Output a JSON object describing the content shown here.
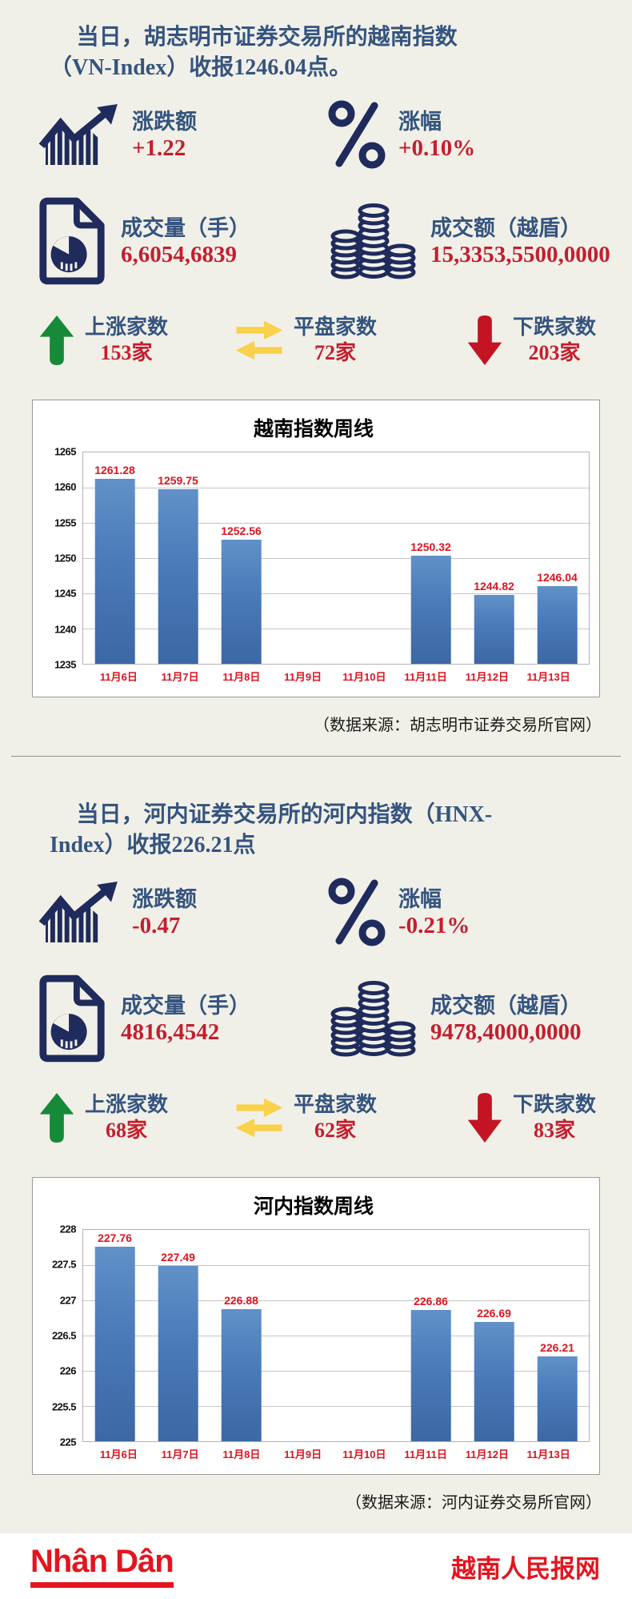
{
  "colors": {
    "bg": "#f1f0e8",
    "navy": "#1f2b5c",
    "blue-label": "#35547f",
    "red-value": "#c41e2e",
    "red-chart": "#dc1420",
    "green": "#168a38",
    "yellow": "#f9d14b",
    "dred": "#c21423",
    "brand-red": "#e4141e"
  },
  "sections": [
    {
      "title_lines": [
        "当日，胡志明市证券交易所的越南指数",
        "（VN-Index）收报1246.04点。"
      ],
      "stats": [
        {
          "icon": "trend-chart-icon",
          "label": "涨跌额",
          "value": "+1.22"
        },
        {
          "icon": "percent-icon",
          "label": "涨幅",
          "value": "+0.10%"
        },
        {
          "icon": "volume-doc-icon",
          "label": "成交量（手）",
          "value": "6,6054,6839"
        },
        {
          "icon": "coins-icon",
          "label": "成交额（越盾）",
          "value": "15,3353,5500,0000"
        }
      ],
      "breadth": [
        {
          "icon": "up-arrow-icon",
          "label": "上涨家数",
          "value": "153家"
        },
        {
          "icon": "flat-arrows-icon",
          "label": "平盘家数",
          "value": "72家"
        },
        {
          "icon": "down-arrow-icon",
          "label": "下跌家数",
          "value": "203家"
        }
      ],
      "source": "（数据来源：胡志明市证券交易所官网）"
    },
    {
      "title_lines": [
        "当日，河内证券交易所的河内指数（HNX-",
        "Index）收报226.21点"
      ],
      "stats": [
        {
          "icon": "trend-chart-icon",
          "label": "涨跌额",
          "value": "-0.47"
        },
        {
          "icon": "percent-icon",
          "label": "涨幅",
          "value": "-0.21%"
        },
        {
          "icon": "volume-doc-icon",
          "label": "成交量（手）",
          "value": "4816,4542"
        },
        {
          "icon": "coins-icon",
          "label": "成交额（越盾）",
          "value": "9478,4000,0000"
        }
      ],
      "breadth": [
        {
          "icon": "up-arrow-icon",
          "label": "上涨家数",
          "value": "68家"
        },
        {
          "icon": "flat-arrows-icon",
          "label": "平盘家数",
          "value": "62家"
        },
        {
          "icon": "down-arrow-icon",
          "label": "下跌家数",
          "value": "83家"
        }
      ],
      "source": "（数据来源：河内证券交易所官网）"
    }
  ],
  "chart_data": [
    {
      "type": "bar",
      "title": "越南指数周线",
      "categories": [
        "11月6日",
        "11月7日",
        "11月8日",
        "11月9日",
        "11月10日",
        "11月11日",
        "11月12日",
        "11月13日"
      ],
      "values": [
        1261.28,
        1259.75,
        1252.56,
        null,
        null,
        1250.32,
        1244.82,
        1246.04
      ],
      "ylim": [
        1235,
        1265
      ],
      "ytick_step": 5,
      "grid": true,
      "legend_position": "none",
      "bar_color": "#4f81bd",
      "value_label_color": "#dc1420"
    },
    {
      "type": "bar",
      "title": "河内指数周线",
      "categories": [
        "11月6日",
        "11月7日",
        "11月8日",
        "11月9日",
        "11月10日",
        "11月11日",
        "11月12日",
        "11月13日"
      ],
      "values": [
        227.76,
        227.49,
        226.88,
        null,
        null,
        226.86,
        226.69,
        226.21
      ],
      "ylim": [
        225,
        228
      ],
      "ytick_step": 0.5,
      "grid": true,
      "legend_position": "none",
      "bar_color": "#4f81bd",
      "value_label_color": "#dc1420"
    }
  ],
  "footer": {
    "logo_text": "Nhân Dân",
    "site_name": "越南人民报网"
  }
}
